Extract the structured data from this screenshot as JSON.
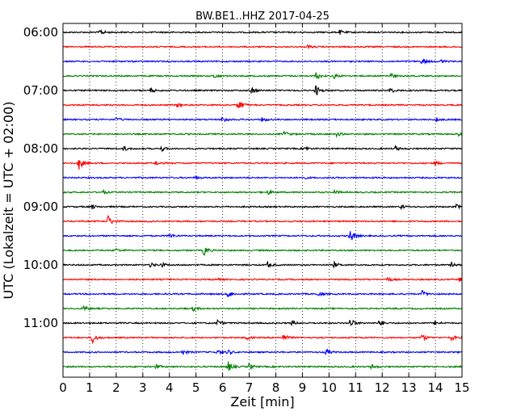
{
  "chart_data": {
    "type": "line",
    "title": "BW.BE1..HHZ 2017-04-25",
    "xlabel": "Zeit  [min]",
    "ylabel": "UTC (Lokalzeit = UTC + 02:00)",
    "xlim": [
      0,
      15
    ],
    "x_ticks": [
      "0",
      "1",
      "2",
      "3",
      "4",
      "5",
      "6",
      "7",
      "8",
      "9",
      "10",
      "11",
      "12",
      "13",
      "14",
      "15"
    ],
    "y_tick_labels": [
      "06:00",
      "07:00",
      "08:00",
      "09:00",
      "10:00",
      "11:00"
    ],
    "grid": {
      "x": "dotted",
      "y": "none"
    },
    "trace_colors": [
      "#000000",
      "#ff0000",
      "#0000ff",
      "#008000"
    ],
    "series": [
      {
        "start": "06:00",
        "color": "#000000",
        "events": [
          {
            "x": 1.4,
            "a": 0.45
          },
          {
            "x": 10.4,
            "a": 0.3
          }
        ]
      },
      {
        "start": "06:15",
        "color": "#ff0000",
        "events": [
          {
            "x": 9.2,
            "a": 0.25
          }
        ]
      },
      {
        "start": "06:30",
        "color": "#0000ff",
        "events": [
          {
            "x": 13.5,
            "a": 0.45
          },
          {
            "x": 14.2,
            "a": 0.25
          }
        ]
      },
      {
        "start": "06:45",
        "color": "#008000",
        "events": [
          {
            "x": 5.7,
            "a": 0.3
          },
          {
            "x": 9.5,
            "a": 0.6
          },
          {
            "x": 10.2,
            "a": 0.3
          },
          {
            "x": 12.3,
            "a": 0.35
          }
        ]
      },
      {
        "start": "07:00",
        "color": "#000000",
        "events": [
          {
            "x": 3.3,
            "a": 0.3
          },
          {
            "x": 7.1,
            "a": 0.4
          },
          {
            "x": 9.5,
            "a": 0.8
          },
          {
            "x": 12.3,
            "a": 0.35
          }
        ]
      },
      {
        "start": "07:15",
        "color": "#ff0000",
        "events": [
          {
            "x": 4.3,
            "a": 0.3
          },
          {
            "x": 6.6,
            "a": 0.9
          }
        ]
      },
      {
        "start": "07:30",
        "color": "#0000ff",
        "events": [
          {
            "x": 2.0,
            "a": 0.3
          },
          {
            "x": 6.0,
            "a": 0.45
          },
          {
            "x": 7.5,
            "a": 0.3
          },
          {
            "x": 14.0,
            "a": 0.35
          }
        ]
      },
      {
        "start": "07:45",
        "color": "#008000",
        "events": [
          {
            "x": 8.3,
            "a": 0.4
          },
          {
            "x": 10.3,
            "a": 0.3
          },
          {
            "x": 14.9,
            "a": 0.3
          }
        ]
      },
      {
        "start": "08:00",
        "color": "#000000",
        "events": [
          {
            "x": 2.3,
            "a": 0.3
          },
          {
            "x": 3.7,
            "a": 0.35
          },
          {
            "x": 9.1,
            "a": 0.3
          },
          {
            "x": 12.5,
            "a": 0.3
          }
        ]
      },
      {
        "start": "08:15",
        "color": "#ff0000",
        "events": [
          {
            "x": 0.6,
            "a": 0.95
          },
          {
            "x": 3.5,
            "a": 0.3
          },
          {
            "x": 14.0,
            "a": 0.3
          }
        ]
      },
      {
        "start": "08:30",
        "color": "#0000ff",
        "events": [
          {
            "x": 5.0,
            "a": 0.2
          },
          {
            "x": 9.0,
            "a": 0.2
          }
        ]
      },
      {
        "start": "08:45",
        "color": "#008000",
        "events": [
          {
            "x": 1.5,
            "a": 0.25
          },
          {
            "x": 7.7,
            "a": 0.3
          },
          {
            "x": 10.2,
            "a": 0.3
          }
        ]
      },
      {
        "start": "09:00",
        "color": "#000000",
        "events": [
          {
            "x": 1.1,
            "a": 0.3
          },
          {
            "x": 12.7,
            "a": 0.3
          },
          {
            "x": 14.8,
            "a": 0.3
          }
        ]
      },
      {
        "start": "09:15",
        "color": "#ff0000",
        "events": [
          {
            "x": 1.7,
            "a": 0.8
          },
          {
            "x": 3.2,
            "a": 0.2
          }
        ]
      },
      {
        "start": "09:30",
        "color": "#0000ff",
        "events": [
          {
            "x": 4.0,
            "a": 0.35
          },
          {
            "x": 10.8,
            "a": 0.95
          }
        ]
      },
      {
        "start": "09:45",
        "color": "#008000",
        "events": [
          {
            "x": 2.0,
            "a": 0.25
          },
          {
            "x": 5.3,
            "a": 0.7
          }
        ]
      },
      {
        "start": "10:00",
        "color": "#000000",
        "events": [
          {
            "x": 3.3,
            "a": 0.35
          },
          {
            "x": 3.7,
            "a": 0.3
          },
          {
            "x": 7.7,
            "a": 0.35
          },
          {
            "x": 10.2,
            "a": 0.35
          },
          {
            "x": 14.6,
            "a": 0.3
          }
        ]
      },
      {
        "start": "10:15",
        "color": "#ff0000",
        "events": [
          {
            "x": 5.7,
            "a": 0.25
          },
          {
            "x": 12.2,
            "a": 0.3
          },
          {
            "x": 14.9,
            "a": 0.25
          }
        ]
      },
      {
        "start": "10:30",
        "color": "#0000ff",
        "events": [
          {
            "x": 6.2,
            "a": 0.5
          },
          {
            "x": 9.6,
            "a": 0.3
          },
          {
            "x": 13.5,
            "a": 0.45
          }
        ]
      },
      {
        "start": "10:45",
        "color": "#008000",
        "events": [
          {
            "x": 0.8,
            "a": 0.45
          },
          {
            "x": 4.9,
            "a": 0.3
          }
        ]
      },
      {
        "start": "11:00",
        "color": "#000000",
        "events": [
          {
            "x": 5.8,
            "a": 0.45
          },
          {
            "x": 8.6,
            "a": 0.3
          },
          {
            "x": 10.8,
            "a": 0.7
          },
          {
            "x": 11.9,
            "a": 0.5
          },
          {
            "x": 14.0,
            "a": 0.35
          }
        ]
      },
      {
        "start": "11:15",
        "color": "#ff0000",
        "events": [
          {
            "x": 1.1,
            "a": 0.9
          },
          {
            "x": 6.9,
            "a": 0.3
          },
          {
            "x": 8.3,
            "a": 0.6
          },
          {
            "x": 13.5,
            "a": 0.5
          },
          {
            "x": 14.6,
            "a": 0.4
          }
        ]
      },
      {
        "start": "11:30",
        "color": "#0000ff",
        "events": [
          {
            "x": 4.5,
            "a": 0.35
          },
          {
            "x": 5.8,
            "a": 0.35
          },
          {
            "x": 6.2,
            "a": 0.35
          },
          {
            "x": 9.9,
            "a": 0.4
          }
        ]
      },
      {
        "start": "11:45",
        "color": "#008000",
        "events": [
          {
            "x": 3.5,
            "a": 0.3
          },
          {
            "x": 6.2,
            "a": 0.75
          },
          {
            "x": 7.0,
            "a": 0.45
          },
          {
            "x": 11.6,
            "a": 0.3
          }
        ]
      }
    ]
  }
}
